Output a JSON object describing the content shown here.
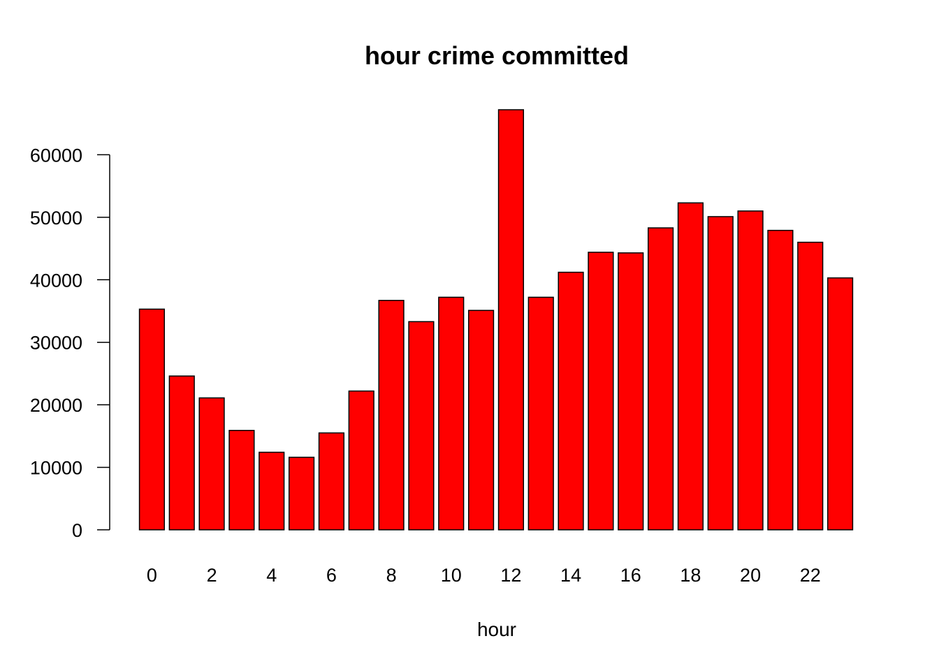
{
  "chart_data": {
    "type": "bar",
    "title": "hour crime committed",
    "xlabel": "hour",
    "ylabel": "",
    "categories": [
      "0",
      "1",
      "2",
      "3",
      "4",
      "5",
      "6",
      "7",
      "8",
      "9",
      "10",
      "11",
      "12",
      "13",
      "14",
      "15",
      "16",
      "17",
      "18",
      "19",
      "20",
      "21",
      "22",
      "23"
    ],
    "values": [
      35300,
      24600,
      21100,
      15900,
      12400,
      11600,
      15500,
      22200,
      36700,
      33300,
      37200,
      35100,
      67200,
      37200,
      41200,
      44400,
      44300,
      48300,
      52300,
      50100,
      51000,
      47900,
      46000,
      40300
    ],
    "x_tick_labels": [
      "0",
      "2",
      "4",
      "6",
      "8",
      "10",
      "12",
      "14",
      "16",
      "18",
      "20",
      "22"
    ],
    "y_ticks": [
      0,
      10000,
      20000,
      30000,
      40000,
      50000,
      60000
    ],
    "ylim": [
      0,
      67200
    ],
    "bar_color": "#ff0000",
    "grid": false,
    "legend": "none"
  }
}
